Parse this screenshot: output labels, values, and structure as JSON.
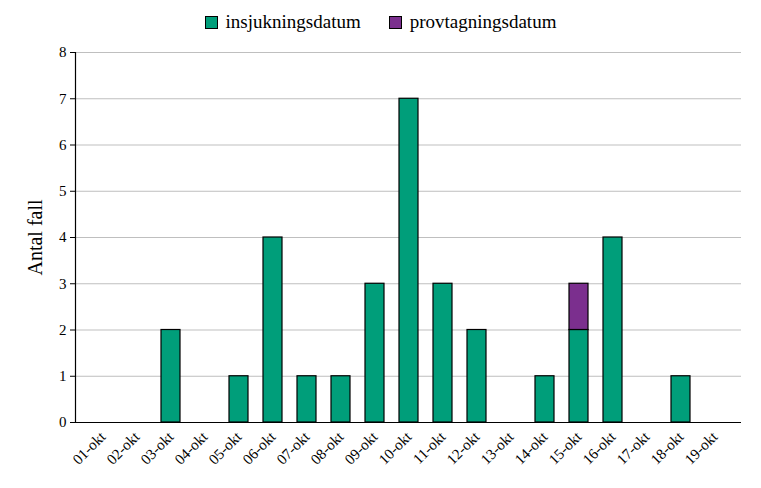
{
  "chart_data": {
    "type": "bar",
    "stacked": true,
    "categories": [
      "01-okt",
      "02-okt",
      "03-okt",
      "04-okt",
      "05-okt",
      "06-okt",
      "07-okt",
      "08-okt",
      "09-okt",
      "10-okt",
      "11-okt",
      "12-okt",
      "13-okt",
      "14-okt",
      "15-okt",
      "16-okt",
      "17-okt",
      "18-okt",
      "19-okt"
    ],
    "series": [
      {
        "name": "insjukningsdatum",
        "color": "#009E7A",
        "values": [
          0,
          0,
          2,
          0,
          1,
          4,
          1,
          1,
          3,
          7,
          3,
          2,
          0,
          1,
          2,
          4,
          0,
          1,
          0
        ]
      },
      {
        "name": "provtagningsdatum",
        "color": "#7B2F8E",
        "values": [
          0,
          0,
          0,
          0,
          0,
          0,
          0,
          0,
          0,
          0,
          0,
          0,
          0,
          0,
          1,
          0,
          0,
          0,
          0
        ]
      }
    ],
    "y_label": "Antal fall",
    "ylim": [
      0,
      8
    ],
    "yticks": [
      0,
      1,
      2,
      3,
      4,
      5,
      6,
      7,
      8
    ],
    "grid": true,
    "legend": "top"
  }
}
